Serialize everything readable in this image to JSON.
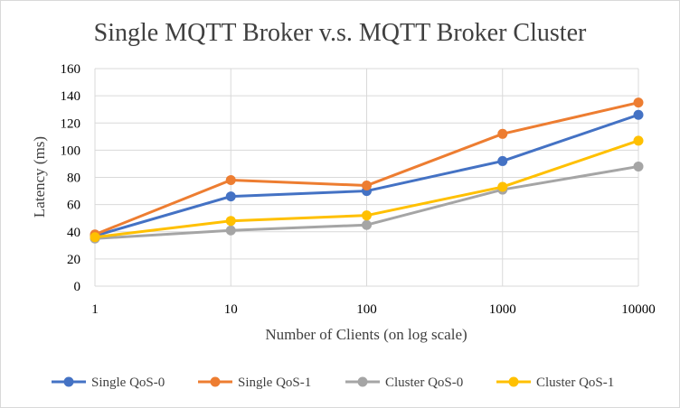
{
  "chart_data": {
    "type": "line",
    "title": "Single MQTT Broker v.s. MQTT Broker Cluster",
    "xlabel": "Number of Clients (on log scale)",
    "ylabel": "Latency (ms)",
    "x_scale": "log",
    "categories": [
      "1",
      "10",
      "100",
      "1000",
      "10000"
    ],
    "x": [
      1,
      10,
      100,
      1000,
      10000
    ],
    "ylim": [
      0,
      160
    ],
    "yticks": [
      "0",
      "20",
      "40",
      "60",
      "80",
      "100",
      "120",
      "140",
      "160"
    ],
    "grid": true,
    "legend_position": "bottom",
    "series": [
      {
        "name": "Single QoS-0",
        "color": "#4472C4",
        "values": [
          37,
          66,
          70,
          92,
          126
        ]
      },
      {
        "name": "Single QoS-1",
        "color": "#ED7D31",
        "values": [
          38,
          78,
          74,
          112,
          135
        ]
      },
      {
        "name": "Cluster QoS-0",
        "color": "#A5A5A5",
        "values": [
          35,
          41,
          45,
          71,
          88
        ]
      },
      {
        "name": "Cluster QoS-1",
        "color": "#FFC000",
        "values": [
          36,
          48,
          52,
          73,
          107
        ]
      }
    ]
  }
}
